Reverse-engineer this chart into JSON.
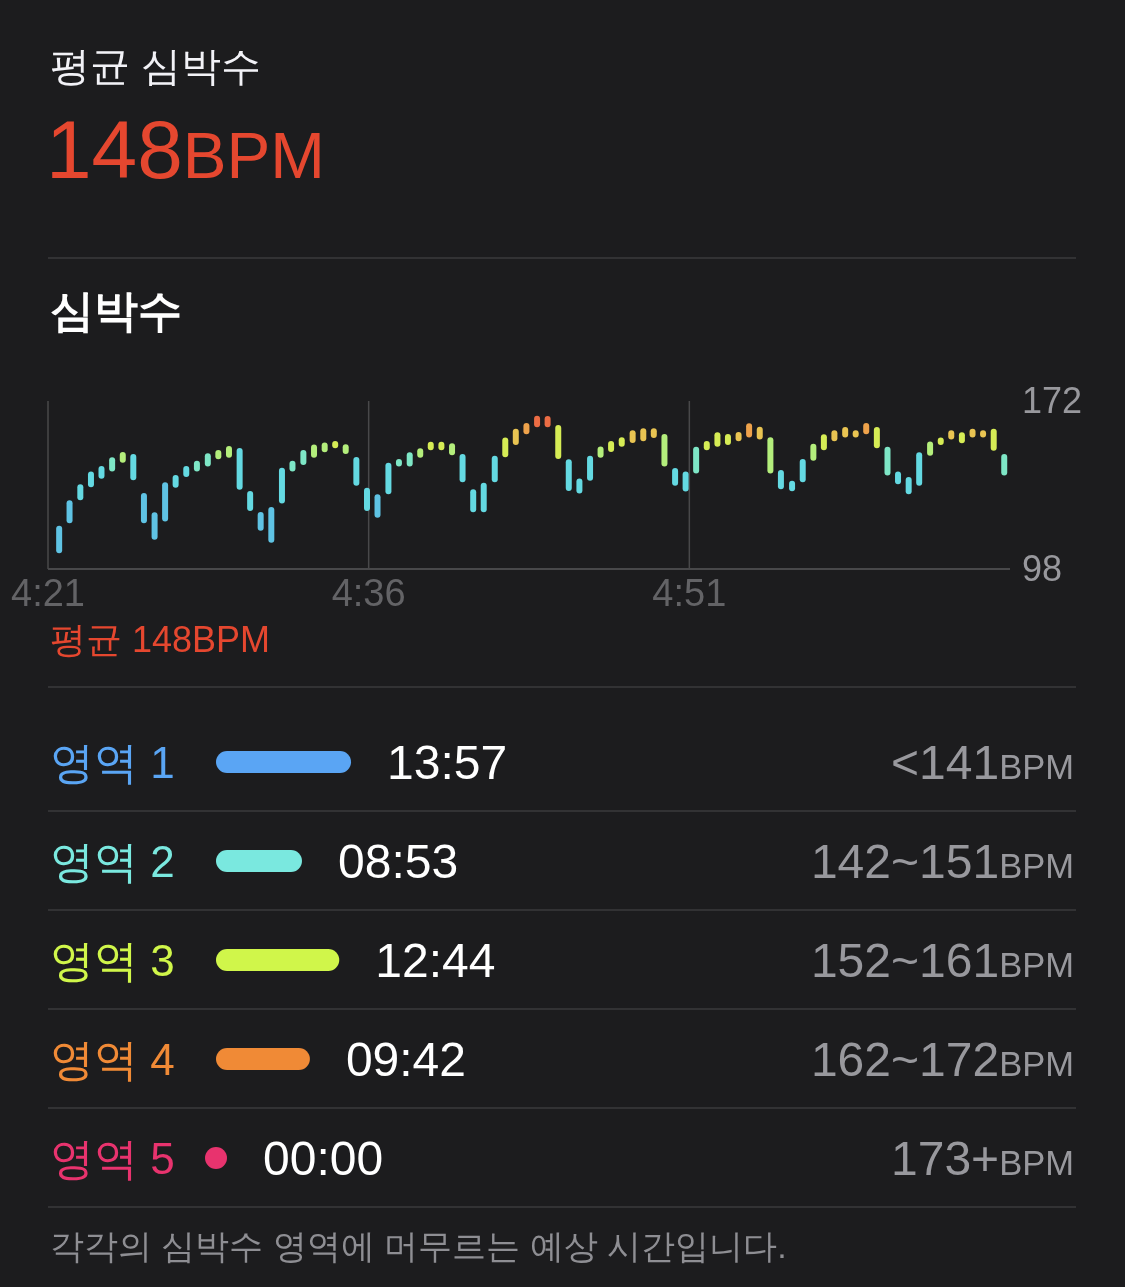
{
  "chart_data": [
    {
      "type": "other",
      "title": "평균 심박수",
      "annotations": [
        "148BPM"
      ]
    },
    {
      "type": "bar",
      "title": "심박수",
      "x": [
        4.3587,
        4.3668,
        4.3752,
        4.3835,
        4.3917,
        4.4,
        4.4083,
        4.4165,
        4.4248,
        4.4331,
        4.4413,
        4.4495,
        4.4578,
        4.4661,
        4.4746,
        4.4828,
        4.4911,
        4.4994,
        4.5076,
        4.5158,
        4.5241,
        4.5324,
        4.5406,
        4.5491,
        4.5574,
        4.5657,
        4.5739,
        4.5821,
        4.5904,
        4.5987,
        4.6069,
        4.6154,
        4.6236,
        4.632,
        4.6402,
        4.6484,
        4.6567,
        4.665,
        4.6732,
        4.6815,
        4.6897,
        4.6983,
        4.7065,
        4.7147,
        4.723,
        4.7313,
        4.7395,
        4.7478,
        4.756,
        4.7643,
        4.7726,
        4.7808,
        4.789,
        4.7973,
        4.8058,
        4.8141,
        4.8223,
        4.8306,
        4.8389,
        4.8471,
        4.8553,
        4.8636,
        4.8719,
        4.8801,
        4.8884,
        4.8966,
        4.9049,
        4.9132,
        4.9214,
        4.9301,
        4.9384,
        4.9467,
        4.9549,
        4.9631,
        4.9715,
        4.9797,
        4.9879,
        4.9962,
        5.0045,
        5.0127,
        5.021,
        5.0292,
        5.0377,
        5.046,
        5.0542,
        5.0625,
        5.0708,
        5.079,
        5.0873,
        5.0955
      ],
      "base": [
        104.9,
        118.1,
        128.3,
        134.0,
        137.8,
        141.0,
        144.8,
        137.1,
        118.1,
        110.9,
        118.9,
        133.8,
        138.5,
        140.9,
        143.1,
        146.3,
        147.0,
        132.9,
        123.6,
        114.9,
        109.6,
        126.8,
        140.9,
        143.8,
        147.0,
        149.4,
        151.2,
        148.7,
        134.7,
        123.6,
        120.6,
        130.9,
        143.2,
        143.2,
        147.0,
        150.3,
        150.3,
        148.1,
        136.2,
        123.0,
        123.0,
        136.2,
        147.2,
        152.6,
        157.3,
        160.4,
        160.4,
        146.5,
        132.4,
        131.3,
        136.9,
        147.0,
        149.5,
        151.9,
        153.5,
        154.3,
        155.7,
        143.2,
        134.7,
        132.1,
        140.1,
        150.3,
        151.9,
        152.6,
        154.3,
        155.9,
        155.0,
        140.1,
        133.1,
        132.2,
        136.2,
        145.7,
        150.3,
        154.3,
        155.9,
        155.9,
        157.3,
        151.2,
        139.2,
        135.3,
        130.9,
        134.7,
        147.9,
        152.6,
        155.0,
        153.4,
        155.9,
        155.9,
        150.1,
        139.2
      ],
      "values": [
        12.2,
        10.2,
        7.0,
        6.9,
        5.6,
        6.2,
        4.7,
        11.5,
        13.4,
        12.1,
        17.3,
        5.6,
        4.9,
        4.8,
        5.9,
        4.1,
        5.2,
        18.4,
        8.8,
        8.2,
        15.7,
        15.8,
        4.8,
        6.6,
        5.8,
        4.3,
        3.2,
        4.2,
        12.6,
        10.2,
        10.3,
        13.9,
        3.3,
        6.2,
        4.2,
        3.8,
        3.8,
        5.3,
        12.5,
        10.1,
        13.0,
        11.7,
        8.7,
        7.2,
        5.0,
        5.1,
        5.0,
        14.9,
        13.9,
        6.6,
        11.0,
        5.0,
        4.9,
        4.1,
        5.6,
        5.7,
        4.3,
        14.3,
        7.8,
        8.8,
        11.8,
        4.1,
        6.3,
        4.9,
        4.1,
        6.3,
        5.7,
        15.9,
        8.5,
        4.7,
        10.3,
        7.5,
        7.0,
        4.8,
        4.7,
        3.2,
        5.0,
        9.4,
        12.7,
        5.6,
        7.6,
        14.7,
        6.3,
        3.3,
        4.1,
        4.8,
        3.9,
        3.2,
        9.7,
        9.5
      ],
      "colors": [
        "#5fc3e4",
        "#5fc3e4",
        "#64d9e2",
        "#64d9e2",
        "#64d9e2",
        "#7ee6c6",
        "#b4ee7c",
        "#64d9e2",
        "#5fc3e4",
        "#5fc3e4",
        "#5fc3e4",
        "#64d9e2",
        "#64d9e2",
        "#7ee6c6",
        "#7ee6c6",
        "#b4ee7c",
        "#b4ee7c",
        "#64d9e2",
        "#64d9e2",
        "#5fc3e4",
        "#5fc3e4",
        "#64d9e2",
        "#7ee6c6",
        "#7ee6c6",
        "#b4ee7c",
        "#b4ee7c",
        "#d6ec55",
        "#b4ee7c",
        "#64d9e2",
        "#64d9e2",
        "#5fc3e4",
        "#64d9e2",
        "#7ee6c6",
        "#7ee6c6",
        "#b4ee7c",
        "#d6ec55",
        "#d6ec55",
        "#b4ee7c",
        "#64d9e2",
        "#64d9e2",
        "#64d9e2",
        "#64d9e2",
        "#d6ec55",
        "#e9c452",
        "#eea24b",
        "#eb6c44",
        "#eb6c44",
        "#d6ec55",
        "#64d9e2",
        "#64d9e2",
        "#64d9e2",
        "#b4ee7c",
        "#d6ec55",
        "#d6ec55",
        "#e9c452",
        "#e9c452",
        "#e9c452",
        "#b4ee7c",
        "#64d9e2",
        "#64d9e2",
        "#7ee6c6",
        "#d6ec55",
        "#d6ec55",
        "#d6ec55",
        "#e9c452",
        "#eea24b",
        "#e9c452",
        "#b4ee7c",
        "#64d9e2",
        "#64d9e2",
        "#64d9e2",
        "#b4ee7c",
        "#d6ec55",
        "#e9c452",
        "#e9c452",
        "#e9c452",
        "#eea24b",
        "#d6ec55",
        "#7ee6c6",
        "#64d9e2",
        "#64d9e2",
        "#64d9e2",
        "#b4ee7c",
        "#d6ec55",
        "#e9c452",
        "#d6ec55",
        "#e9c452",
        "#e9c452",
        "#d6ec55",
        "#7ee6c6"
      ],
      "xlim": [
        4.35,
        5.1
      ],
      "xticks": [
        {
          "value": 4.35,
          "label": "4:21"
        },
        {
          "value": 4.6,
          "label": "4:36"
        },
        {
          "value": 4.85,
          "label": "4:51"
        }
      ],
      "ylim": [
        98,
        172
      ],
      "yticks": [
        98,
        172
      ],
      "grid": "x",
      "annotations": [
        "평균 148BPM"
      ]
    },
    {
      "type": "bar",
      "orientation": "horizontal",
      "categories": [
        "영역 1",
        "영역 2",
        "영역 3",
        "영역 4",
        "영역 5"
      ],
      "values": [
        13.95,
        8.883,
        12.733,
        9.7,
        0
      ],
      "colors": [
        "#5aa5f4",
        "#7ae8df",
        "#d0f64a",
        "#f08a36",
        "#e8336e"
      ],
      "value_labels": [
        "13:57",
        "08:53",
        "12:44",
        "09:42",
        "00:00"
      ],
      "annotations": [
        "<141BPM",
        "142~151BPM",
        "152~161BPM",
        "162~172BPM",
        "173+BPM",
        "각각의 심박수 영역에 머무르는 예상 시간입니다."
      ]
    }
  ]
}
